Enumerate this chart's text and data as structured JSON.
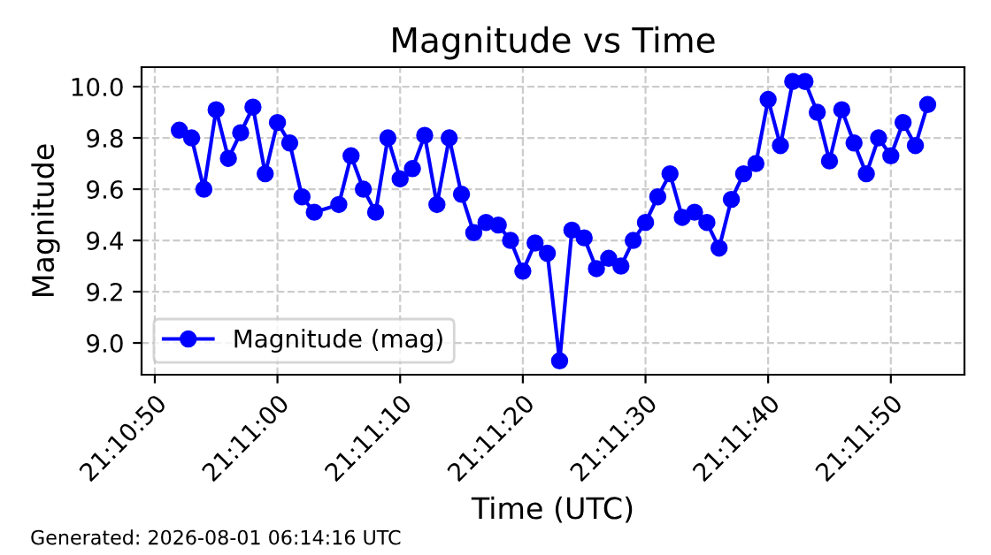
{
  "chart_data": {
    "type": "line",
    "title": "Magnitude vs Time",
    "xlabel": "Time (UTC)",
    "ylabel": "Magnitude",
    "annotations": [
      "Generated: 2026-08-01 06:14:16 UTC"
    ],
    "x": [
      21.181111,
      21.181389,
      21.181667,
      21.181944,
      21.182222,
      21.1825,
      21.182778,
      21.183056,
      21.183333,
      21.183611,
      21.183889,
      21.184167,
      21.184722,
      21.185,
      21.185278,
      21.185556,
      21.185833,
      21.186111,
      21.186389,
      21.186667,
      21.186944,
      21.187222,
      21.1875,
      21.187778,
      21.188056,
      21.188333,
      21.188611,
      21.188889,
      21.189167,
      21.189444,
      21.189722,
      21.19,
      21.190278,
      21.190556,
      21.190833,
      21.191111,
      21.191389,
      21.191667,
      21.191944,
      21.192222,
      21.1925,
      21.192778,
      21.193056,
      21.193333,
      21.193611,
      21.193889,
      21.194167,
      21.194444,
      21.194722,
      21.195,
      21.195278,
      21.195556,
      21.195833,
      21.196111,
      21.196389,
      21.196667,
      21.196944,
      21.197222,
      21.1975,
      21.197778,
      21.198056
    ],
    "series": [
      {
        "name": "Magnitude (mag)",
        "color": "#0000ff",
        "values": [
          9.83,
          9.8,
          9.6,
          9.91,
          9.72,
          9.82,
          9.92,
          9.66,
          9.86,
          9.78,
          9.57,
          9.51,
          9.54,
          9.73,
          9.6,
          9.51,
          9.8,
          9.64,
          9.68,
          9.81,
          9.54,
          9.8,
          9.58,
          9.43,
          9.47,
          9.46,
          9.4,
          9.28,
          9.39,
          9.35,
          8.93,
          9.44,
          9.41,
          9.29,
          9.33,
          9.3,
          9.4,
          9.47,
          9.57,
          9.66,
          9.49,
          9.51,
          9.47,
          9.37,
          9.56,
          9.66,
          9.7,
          9.95,
          9.77,
          10.02,
          10.02,
          9.9,
          9.71,
          9.91,
          9.78,
          9.66,
          9.8,
          9.73,
          9.86,
          9.77,
          9.93
        ]
      }
    ],
    "xlim": [
      21.180256,
      21.198889
    ],
    "xticks": [
      {
        "value": 21.180556,
        "label": "21:10:50"
      },
      {
        "value": 21.183333,
        "label": "21:11:00"
      },
      {
        "value": 21.186111,
        "label": "21:11:10"
      },
      {
        "value": 21.188889,
        "label": "21:11:20"
      },
      {
        "value": 21.191667,
        "label": "21:11:30"
      },
      {
        "value": 21.194444,
        "label": "21:11:40"
      },
      {
        "value": 21.197222,
        "label": "21:11:50"
      }
    ],
    "ylim": [
      8.876,
      10.076
    ],
    "yticks": [
      {
        "value": 9.0,
        "label": "9.0"
      },
      {
        "value": 9.2,
        "label": "9.2"
      },
      {
        "value": 9.4,
        "label": "9.4"
      },
      {
        "value": 9.6,
        "label": "9.6"
      },
      {
        "value": 9.8,
        "label": "9.8"
      },
      {
        "value": 10.0,
        "label": "10.0"
      }
    ],
    "grid": true,
    "legend": "bottom left",
    "marker": "circle",
    "line_style": "solid"
  }
}
